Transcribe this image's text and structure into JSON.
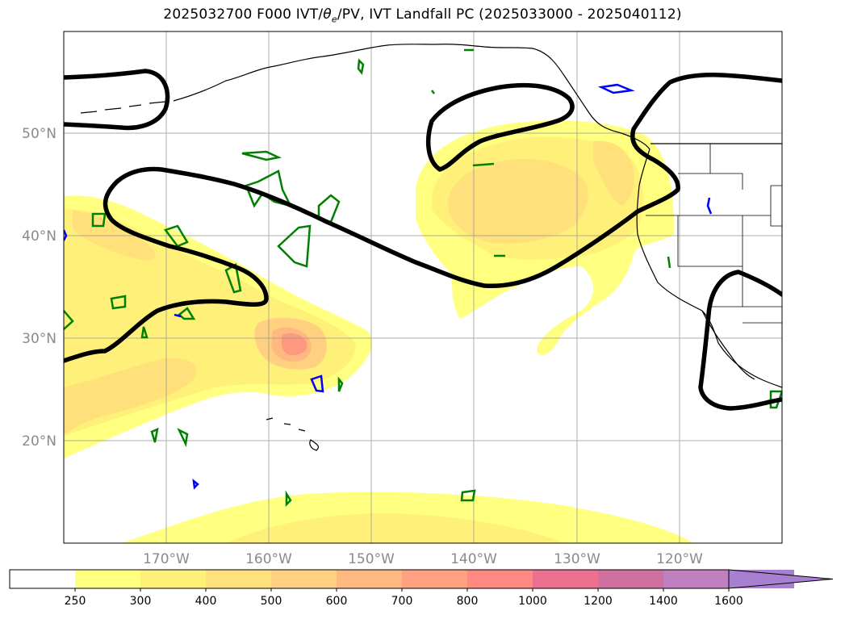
{
  "title": "2025032700 F000 IVT/θe/PV, IVT Landfall PC (2025033000 - 2025040112)",
  "title_parts": {
    "prefix": "2025032700 F000 IVT/",
    "theta": "θ",
    "theta_sub": "e",
    "suffix": "/PV, IVT Landfall PC (2025033000 - 2025040112)"
  },
  "map": {
    "lon_range": [
      -180,
      -110
    ],
    "lat_range": [
      10,
      60
    ],
    "gridlines": true,
    "lat_ticks": [
      {
        "value": 50,
        "label": "50°N"
      },
      {
        "value": 40,
        "label": "40°N"
      },
      {
        "value": 30,
        "label": "30°N"
      },
      {
        "value": 20,
        "label": "20°N"
      }
    ],
    "lon_ticks": [
      {
        "value": -170,
        "label": "170°W"
      },
      {
        "value": -160,
        "label": "160°W"
      },
      {
        "value": -150,
        "label": "150°W"
      },
      {
        "value": -140,
        "label": "140°W"
      },
      {
        "value": -130,
        "label": "130°W"
      },
      {
        "value": -120,
        "label": "120°W"
      }
    ],
    "contour_colors": {
      "landfall_pc": "#000000",
      "pv": "#008000",
      "theta_e": "#0000ff",
      "coastline": "#000000"
    }
  },
  "colorbar": {
    "levels": [
      "250",
      "300",
      "400",
      "500",
      "600",
      "700",
      "800",
      "1000",
      "1200",
      "1400",
      "1600"
    ],
    "colors": [
      "#ffffff",
      "#ffff80",
      "#fff07a",
      "#ffe07a",
      "#ffd080",
      "#ffb880",
      "#ffa080",
      "#ff8880",
      "#ee7090",
      "#d070a0",
      "#c080c0",
      "#a880d0"
    ],
    "extend": "max"
  }
}
